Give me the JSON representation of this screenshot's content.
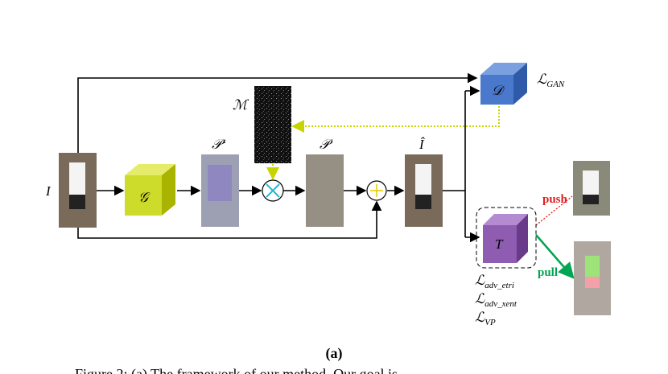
{
  "nodes": {
    "input": {
      "label": "I"
    },
    "generator": {
      "label": "𝒢"
    },
    "perturbation_raw": {
      "label": "𝒫‘"
    },
    "mask": {
      "label": "ℳ"
    },
    "perturbation": {
      "label": "𝒫"
    },
    "adversarial": {
      "label": "Î"
    },
    "discriminator": {
      "label": "𝒟"
    },
    "target": {
      "label": "T"
    }
  },
  "losses": {
    "gan": {
      "symbol": "ℒ",
      "subscript": "GAN"
    },
    "adv_etri": {
      "symbol": "ℒ",
      "subscript": "adv_etri"
    },
    "adv_xent": {
      "symbol": "ℒ",
      "subscript": "adv_xent"
    },
    "vp": {
      "symbol": "ℒ",
      "subscript": "VP"
    }
  },
  "edges": {
    "push": "push",
    "pull": "pull"
  },
  "panel_label": "(a)",
  "caption": "Figure 2: (a) The framework of our method. Our goal is"
}
